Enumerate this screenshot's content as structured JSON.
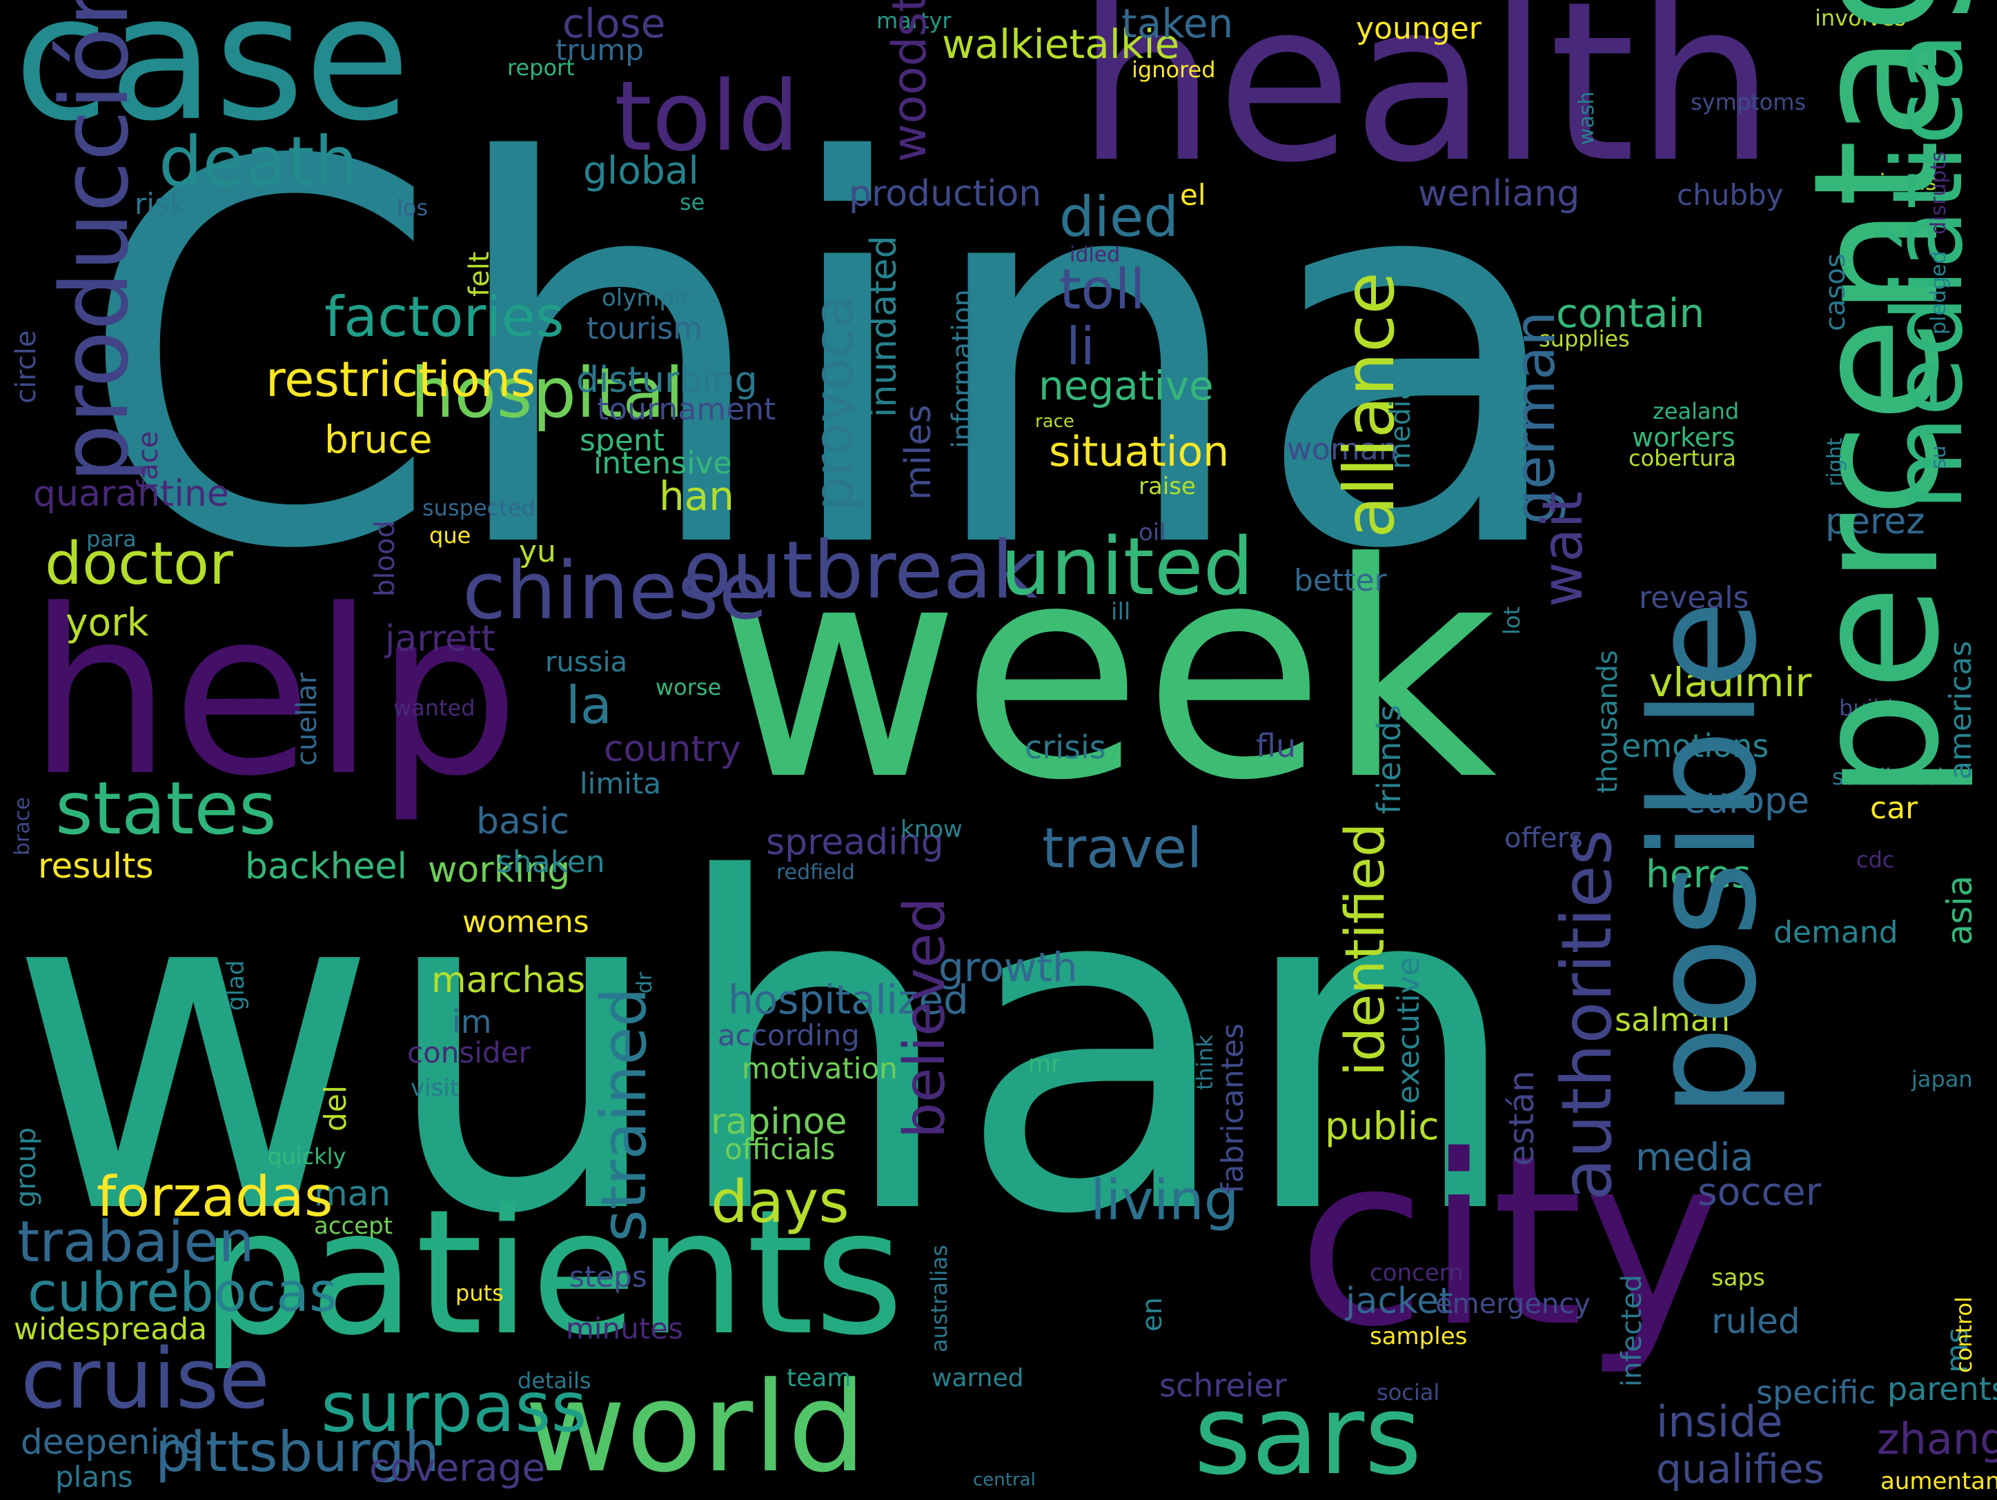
{
  "palette": {
    "background": "#000000",
    "viridis_dark": "#440154",
    "viridis_purple": "#482878",
    "viridis_indigo": "#3e4a89",
    "viridis_blue": "#31688e",
    "viridis_teal": "#26828e",
    "viridis_green_teal": "#1f9e89",
    "viridis_green": "#35b779",
    "viridis_lime": "#6ece58",
    "viridis_yellow_green": "#b5de2b",
    "viridis_yellow": "#fde725"
  },
  "words": [
    "China",
    "wuhan",
    "health",
    "week",
    "case",
    "help",
    "patients",
    "city",
    "world",
    "sars",
    "death",
    "told",
    "outbreak",
    "united",
    "chinese",
    "states",
    "doctor",
    "travel",
    "days",
    "cruise",
    "surpass",
    "hospital",
    "restrictions",
    "factories",
    "toll",
    "died",
    "li",
    "la",
    "bruce",
    "york",
    "quarantine",
    "situation",
    "negative",
    "global",
    "production",
    "wenliang",
    "walkietalkie",
    "taken",
    "close",
    "trump",
    "risk",
    "los",
    "se",
    "el",
    "chubby",
    "younger",
    "martyr",
    "report",
    "ignored",
    "symptoms",
    "involves",
    "americans",
    "spent",
    "intensive",
    "disturbing",
    "tournament",
    "tourism",
    "olympic",
    "han",
    "contain",
    "supplies",
    "zealand",
    "workers",
    "cobertura",
    "woman",
    "raise",
    "race",
    "idled",
    "para",
    "suspected",
    "que",
    "yu",
    "jarrett",
    "russia",
    "worse",
    "wanted",
    "country",
    "limita",
    "basic",
    "spreading",
    "backheel",
    "working",
    "results",
    "shaken",
    "womens",
    "marchas",
    "im",
    "consider",
    "visit",
    "hospitalized",
    "according",
    "motivation",
    "rapinoe",
    "officials",
    "growth",
    "know",
    "redfield",
    "flu",
    "crisis",
    "vladimir",
    "emotions",
    "europe",
    "car",
    "heres",
    "demand",
    "offers",
    "perez",
    "reveals",
    "ill",
    "better",
    "oil",
    "build",
    "saudirussian",
    "cdc",
    "man",
    "accept",
    "quickly",
    "mr",
    "salman",
    "japan",
    "media",
    "soccer",
    "public",
    "living",
    "forzadas",
    "trabajen",
    "cubrebocas",
    "pittsburgh",
    "widespreada",
    "deepening",
    "plans",
    "coverage",
    "puts",
    "steps",
    "minutes",
    "details",
    "team",
    "warned",
    "schreier",
    "social",
    "concern",
    "jacket",
    "emergency",
    "samples",
    "saps",
    "ruled",
    "specific",
    "parents",
    "inside",
    "zhang",
    "qualifies",
    "central",
    "aumentan",
    "percentage",
    "posible",
    "producción",
    "mediática",
    "alliance",
    "provoca",
    "woodsthe",
    "authorities",
    "german",
    "wait",
    "strained",
    "believed",
    "inundated",
    "miles",
    "information",
    "median",
    "felt",
    "face",
    "circle",
    "blood",
    "cuellar",
    "del",
    "glad",
    "dr",
    "think",
    "fabricantes",
    "friends",
    "identified",
    "executive",
    "están",
    "thousands",
    "lot",
    "asia",
    "americas",
    "casos",
    "right",
    "su",
    "pledged",
    "disrupts",
    "wash",
    "brace",
    "group",
    "ms",
    "en",
    "infected",
    "australias",
    "control",
    "sars"
  ]
}
